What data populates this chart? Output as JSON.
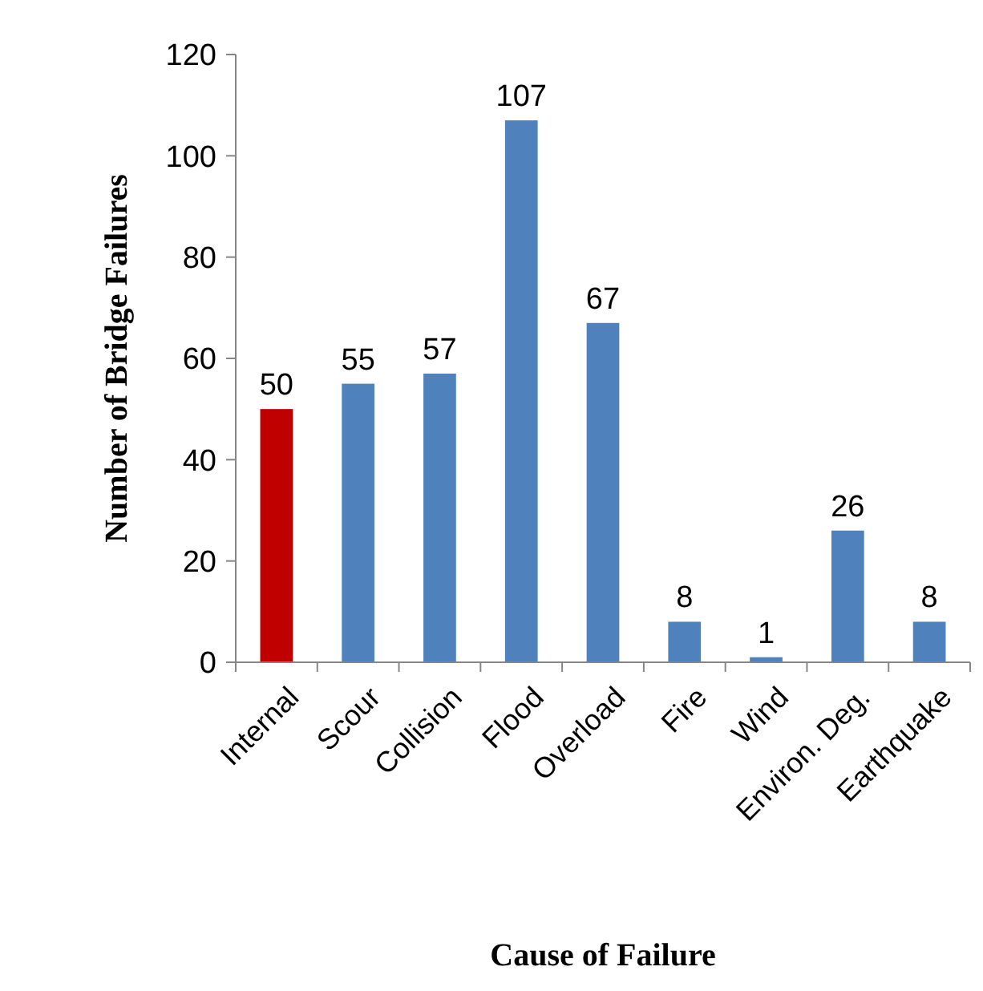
{
  "chart_data": {
    "type": "bar",
    "xlabel": "Cause of Failure",
    "ylabel": "Number of Bridge Failures",
    "categories": [
      "Internal",
      "Scour",
      "Collision",
      "Flood",
      "Overload",
      "Fire",
      "Wind",
      "Environ. Deg.",
      "Earthquake"
    ],
    "values": [
      50,
      55,
      57,
      107,
      67,
      8,
      1,
      26,
      8
    ],
    "colors": [
      "#c00000",
      "#4f81bd",
      "#4f81bd",
      "#4f81bd",
      "#4f81bd",
      "#4f81bd",
      "#4f81bd",
      "#4f81bd",
      "#4f81bd"
    ],
    "ylim": [
      0,
      120
    ],
    "yticks": [
      0,
      20,
      40,
      60,
      80,
      100,
      120
    ],
    "grid": false,
    "data_labels": true
  }
}
